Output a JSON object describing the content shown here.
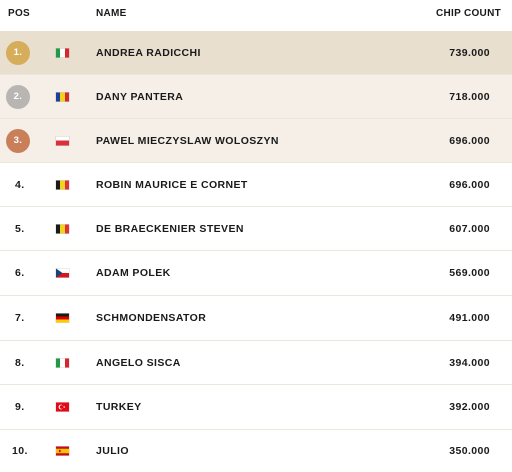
{
  "header": {
    "pos": "POS",
    "name": "NAME",
    "chips": "CHIP COUNT"
  },
  "colors": {
    "gold": "#d6ad5a",
    "silver": "#b8b5b2",
    "bronze": "#c9805a",
    "top_row": "#e9dfcf",
    "podium_row": "#f5efe8"
  },
  "rows": [
    {
      "pos": "1.",
      "name": "ANDREA RADICCHI",
      "chips": "739.000",
      "flag": "italy-flag",
      "medal": "gold"
    },
    {
      "pos": "2.",
      "name": "DANY PANTERA",
      "chips": "718.000",
      "flag": "romania-flag",
      "medal": "silver"
    },
    {
      "pos": "3.",
      "name": "PAWEL MIECZYSLAW WOLOSZYN",
      "chips": "696.000",
      "flag": "poland-flag",
      "medal": "bronze"
    },
    {
      "pos": "4.",
      "name": "ROBIN MAURICE E CORNET",
      "chips": "696.000",
      "flag": "belgium-flag"
    },
    {
      "pos": "5.",
      "name": "DE BRAECKENIER STEVEN",
      "chips": "607.000",
      "flag": "belgium-flag"
    },
    {
      "pos": "6.",
      "name": "ADAM POLEK",
      "chips": "569.000",
      "flag": "czech-flag"
    },
    {
      "pos": "7.",
      "name": "SCHMONDENSATOR",
      "chips": "491.000",
      "flag": "germany-flag"
    },
    {
      "pos": "8.",
      "name": "ANGELO SISCA",
      "chips": "394.000",
      "flag": "italy-flag"
    },
    {
      "pos": "9.",
      "name": "TURKEY",
      "chips": "392.000",
      "flag": "turkey-flag"
    },
    {
      "pos": "10.",
      "name": "JULIO",
      "chips": "350.000",
      "flag": "spain-flag"
    }
  ]
}
